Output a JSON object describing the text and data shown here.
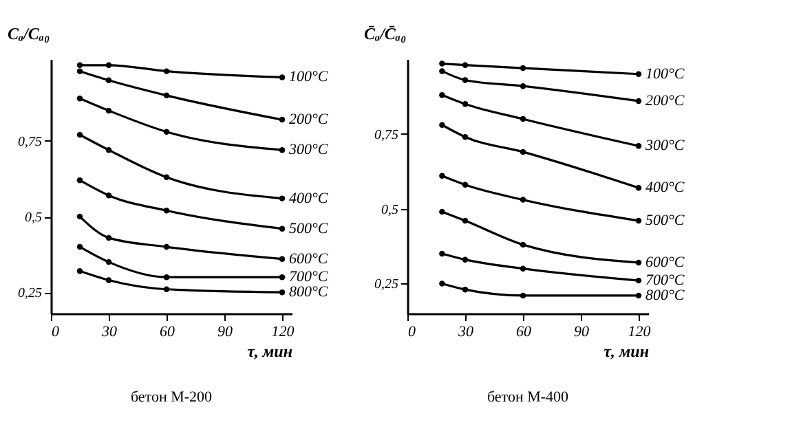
{
  "chart_data": [
    {
      "type": "line",
      "title": "бетон М-200",
      "xlabel": "τ, мин",
      "ylabel": "Cₐ/Cₐ₀",
      "x": [
        15,
        30,
        60,
        120
      ],
      "xlim": [
        0,
        125
      ],
      "xticks": [
        0,
        30,
        60,
        90,
        120
      ],
      "ylim": [
        0.18,
        1.02
      ],
      "yticks": [
        {
          "value": 0.25,
          "label": "0,25"
        },
        {
          "value": 0.5,
          "label": "0,5"
        },
        {
          "value": 0.75,
          "label": "0,75"
        }
      ],
      "grid": false,
      "legend": false,
      "marker": "circle",
      "line_style": "solid",
      "series": [
        {
          "name": "100°C",
          "color": "#000000",
          "values": [
            1.0,
            1.0,
            0.98,
            0.96
          ]
        },
        {
          "name": "200°C",
          "color": "#000000",
          "values": [
            0.98,
            0.95,
            0.9,
            0.82
          ]
        },
        {
          "name": "300°C",
          "color": "#000000",
          "values": [
            0.89,
            0.85,
            0.78,
            0.72
          ]
        },
        {
          "name": "400°C",
          "color": "#000000",
          "values": [
            0.77,
            0.72,
            0.63,
            0.56
          ]
        },
        {
          "name": "500°C",
          "color": "#000000",
          "values": [
            0.62,
            0.57,
            0.52,
            0.46
          ]
        },
        {
          "name": "600°C",
          "color": "#000000",
          "values": [
            0.5,
            0.43,
            0.4,
            0.36
          ]
        },
        {
          "name": "700°C",
          "color": "#000000",
          "values": [
            0.4,
            0.35,
            0.3,
            0.3
          ]
        },
        {
          "name": "800°C",
          "color": "#000000",
          "values": [
            0.32,
            0.29,
            0.26,
            0.25
          ]
        }
      ]
    },
    {
      "type": "line",
      "title": "бетон М-400",
      "xlabel": "τ, мин",
      "ylabel": "C̄ₐ/C̄ₐ₀",
      "x": [
        18,
        30,
        60,
        120
      ],
      "xlim": [
        0,
        125
      ],
      "xticks": [
        0,
        30,
        60,
        90,
        120
      ],
      "ylim": [
        0.15,
        1.0
      ],
      "yticks": [
        {
          "value": 0.25,
          "label": "0,25"
        },
        {
          "value": 0.5,
          "label": "0,5"
        },
        {
          "value": 0.75,
          "label": "0,75"
        }
      ],
      "grid": false,
      "legend": false,
      "marker": "circle",
      "line_style": "solid",
      "series": [
        {
          "name": "100°C",
          "color": "#000000",
          "values": [
            0.985,
            0.98,
            0.97,
            0.95
          ]
        },
        {
          "name": "200°C",
          "color": "#000000",
          "values": [
            0.96,
            0.93,
            0.91,
            0.86
          ]
        },
        {
          "name": "300°C",
          "color": "#000000",
          "values": [
            0.88,
            0.85,
            0.8,
            0.71
          ]
        },
        {
          "name": "400°C",
          "color": "#000000",
          "values": [
            0.78,
            0.74,
            0.69,
            0.57
          ]
        },
        {
          "name": "500°C",
          "color": "#000000",
          "values": [
            0.61,
            0.58,
            0.53,
            0.46
          ]
        },
        {
          "name": "600°C",
          "color": "#000000",
          "values": [
            0.49,
            0.46,
            0.38,
            0.32
          ]
        },
        {
          "name": "700°C",
          "color": "#000000",
          "values": [
            0.35,
            0.33,
            0.3,
            0.26
          ]
        },
        {
          "name": "800°C",
          "color": "#000000",
          "values": [
            0.25,
            0.23,
            0.21,
            0.21
          ]
        }
      ]
    }
  ]
}
